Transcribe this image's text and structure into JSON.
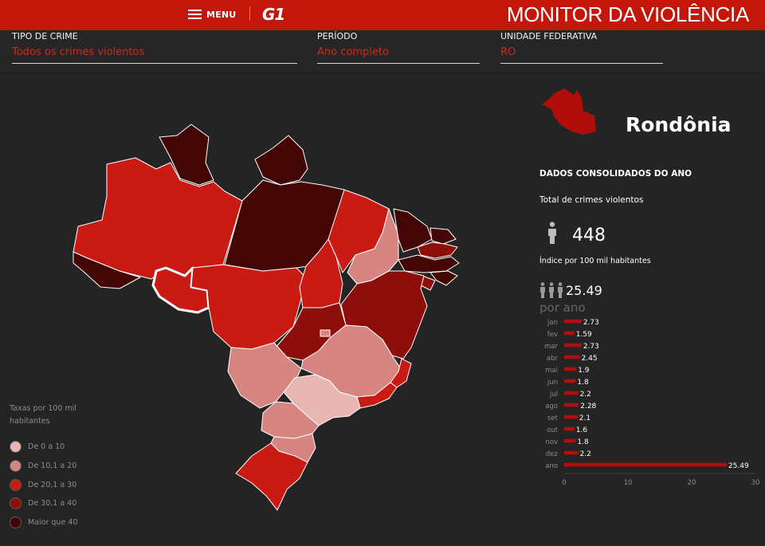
{
  "header": {
    "menu_label": "MENU",
    "logo": "G1",
    "title": "MONITOR DA VIOLÊNCIA"
  },
  "filters": [
    {
      "label": "TIPO DE CRIME",
      "value": "Todos os crimes violentos"
    },
    {
      "label": "PERÍODO",
      "value": "Ano completo"
    },
    {
      "label": "UNIDADE FEDERATIVA",
      "value": "RO"
    }
  ],
  "legend": {
    "title": "Taxas por 100 mil habitantes",
    "items": [
      {
        "label": "De 0 a 10",
        "color": "#e8b6b3"
      },
      {
        "label": "De 10,1 a 20",
        "color": "#d68581"
      },
      {
        "label": "De 20,1 a 30",
        "color": "#c91a14"
      },
      {
        "label": "De 30,1 a 40",
        "color": "#8e0e0b"
      },
      {
        "label": "Maior que 40",
        "color": "#430604"
      }
    ]
  },
  "state": {
    "name": "Rondônia",
    "section_title": "DADOS CONSOLIDADOS DO ANO",
    "total_label": "Total de crimes violentos",
    "total_value": "448",
    "rate_label": "Índice por 100 mil habitantes",
    "rate_value": "25.49",
    "rate_period": "por ano"
  },
  "colors": {
    "brand": "#c4170c",
    "accent_text": "#d7251b",
    "bar": "#b10f0c",
    "background": "#242424"
  },
  "chart_data": {
    "type": "bar",
    "orientation": "horizontal",
    "categories": [
      "jan",
      "fev",
      "mar",
      "abr",
      "mai",
      "jun",
      "jul",
      "ago",
      "set",
      "out",
      "nov",
      "dez",
      "ano"
    ],
    "values": [
      2.73,
      1.59,
      2.73,
      2.45,
      1.9,
      1.8,
      2.2,
      2.28,
      2.1,
      1.6,
      1.8,
      2.2,
      25.49
    ],
    "value_labels": [
      "2.73",
      "1.59",
      "2.73",
      "2.45",
      "1.9",
      "1.8",
      "2.2",
      "2.28",
      "2.1",
      "1.6",
      "1.8",
      "2.2",
      "25.49"
    ],
    "xlim": [
      0,
      30
    ],
    "xticks": [
      "0",
      "10",
      "20",
      "30"
    ],
    "title": "",
    "xlabel": "",
    "ylabel": "",
    "grid": false
  }
}
